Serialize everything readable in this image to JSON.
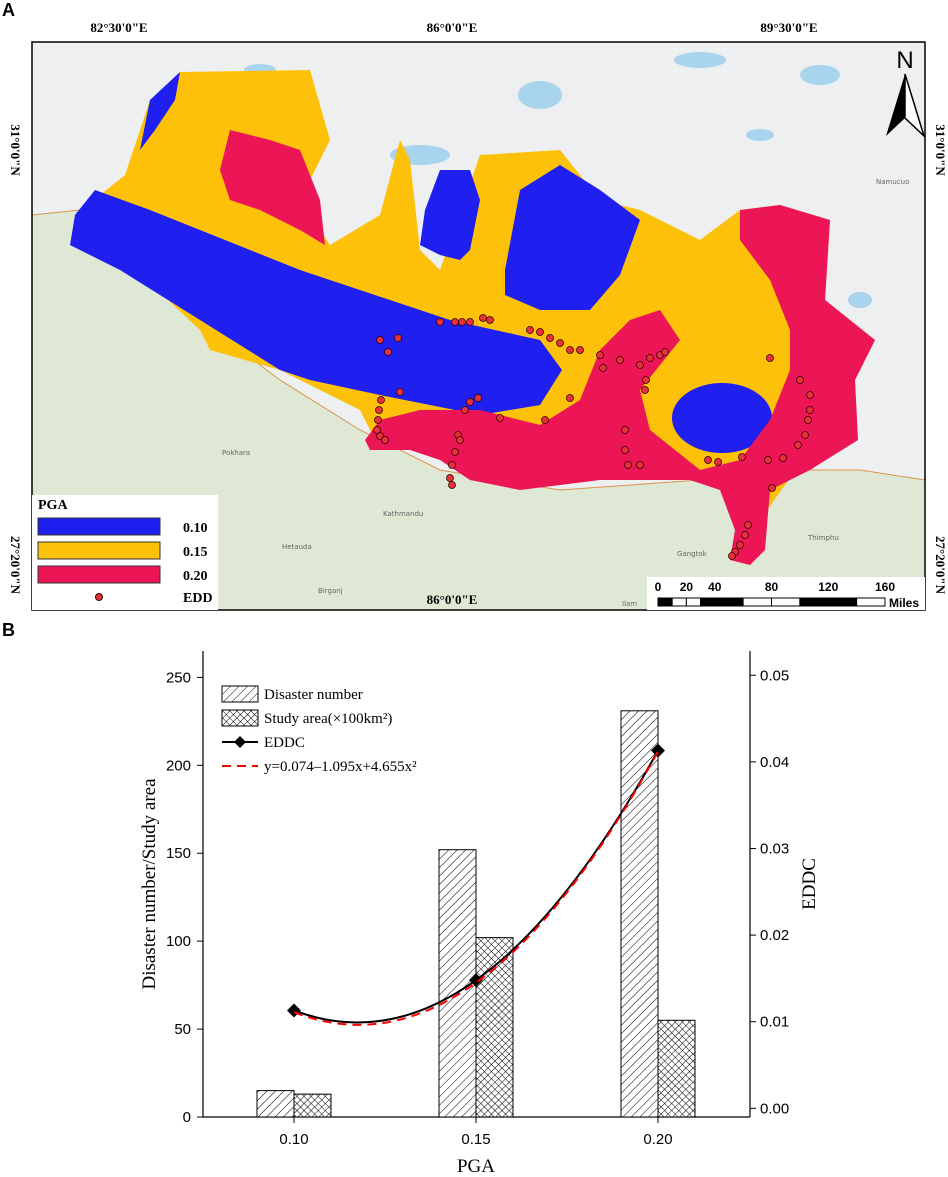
{
  "panel_a": {
    "label": "A",
    "longitudes": [
      "82°30'0\"E",
      "86°0'0\"E",
      "89°30'0\"E"
    ],
    "latitudes": [
      "31°0'0\"N",
      "27°20'0\"N"
    ],
    "north": "N",
    "legend": {
      "title": "PGA",
      "items": [
        "0.10",
        "0.15",
        "0.20",
        "EDD"
      ]
    },
    "scale": {
      "ticks": [
        0,
        20,
        40,
        80,
        120,
        160
      ],
      "unit": "Miles"
    },
    "places": [
      "Pokhara",
      "Kathmandu",
      "Hetauda",
      "Birganj",
      "Gangtok",
      "Thimphu",
      "Ilam",
      "Namucuo"
    ]
  },
  "chart_data": {
    "type": "bar",
    "label": "B",
    "x_label": "PGA",
    "y_label": "Disaster number/Study area",
    "y2_label": "EDDC",
    "categories": [
      "0.10",
      "0.15",
      "0.20"
    ],
    "ylim": [
      0,
      265
    ],
    "yticks": [
      0,
      50,
      100,
      150,
      200,
      250
    ],
    "y2lim": [
      -0.001,
      0.0528
    ],
    "y2ticks": [
      {
        "value": 0,
        "label": "0.00"
      },
      0.01,
      0.02,
      0.03,
      0.04,
      0.05
    ],
    "series": [
      {
        "name": "Disaster number",
        "type": "bar",
        "pattern": "diagonal",
        "color": "#000000",
        "values": [
          15,
          152,
          231
        ]
      },
      {
        "name": "Study area(×100km²)",
        "type": "bar",
        "pattern": "cross",
        "color": "#000000",
        "values": [
          13,
          102,
          55
        ]
      },
      {
        "name": "EDDC",
        "type": "line",
        "axis": "y2",
        "color": "#000000",
        "marker": "diamond",
        "values": [
          0.0113,
          0.0148,
          0.0413
        ]
      },
      {
        "name": "y=0.074–1.095x+4.655x²",
        "type": "line",
        "axis": "y2",
        "color": "#ff0000",
        "dashed": true,
        "values": [
          0.0111,
          0.0145,
          0.0412
        ]
      }
    ]
  }
}
